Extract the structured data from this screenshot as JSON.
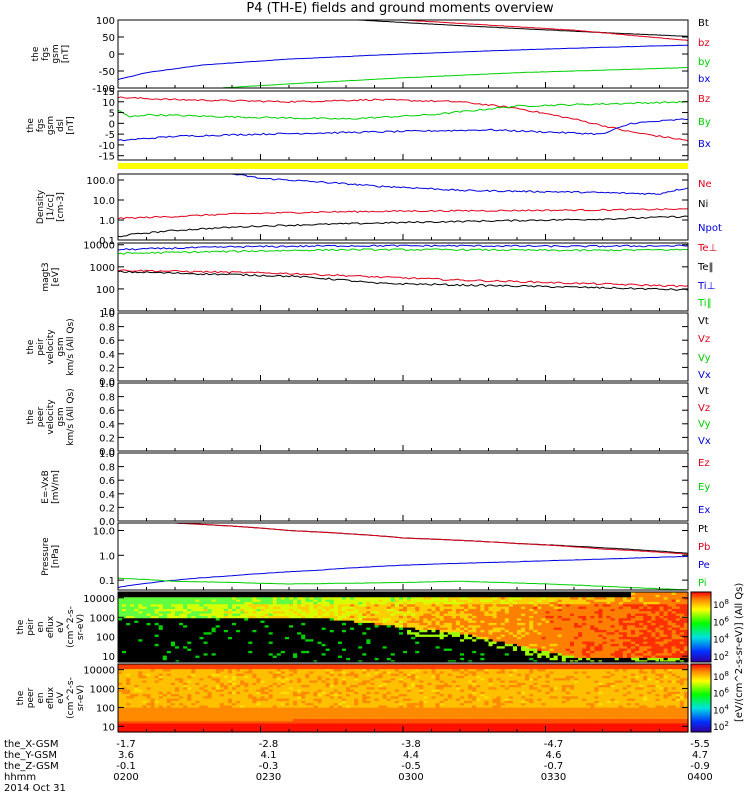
{
  "title": "P4 (TH-E) fields and ground moments overview",
  "colors": {
    "black": "#000000",
    "red": "#e0001a",
    "green": "#00d000",
    "blue": "#0000e0",
    "yellow": "#ffff00"
  },
  "chart_data": [
    {
      "type": "line",
      "panel": "fgs_gsm",
      "ylabel": [
        "the",
        "fgs",
        "gsm",
        "[nT]"
      ],
      "ylim": [
        -100,
        100
      ],
      "yticks": [
        "100",
        "50",
        "0",
        "-50",
        "-100"
      ],
      "yscale": "linear",
      "legend_placement": "right",
      "series": [
        {
          "name": "Bt",
          "color": "black",
          "x": [
            0.42,
            0.55,
            0.7,
            0.85,
            1.0
          ],
          "y": [
            100,
            88,
            75,
            63,
            52
          ]
        },
        {
          "name": "bz",
          "color": "red",
          "x": [
            0.5,
            0.65,
            0.8,
            0.9,
            1.0
          ],
          "y": [
            100,
            85,
            70,
            55,
            40
          ]
        },
        {
          "name": "by",
          "color": "green",
          "x": [
            0.18,
            0.3,
            0.5,
            0.7,
            0.9,
            1.0
          ],
          "y": [
            -100,
            -88,
            -70,
            -55,
            -45,
            -40
          ]
        },
        {
          "name": "bx",
          "color": "blue",
          "x": [
            0,
            0.05,
            0.15,
            0.3,
            0.5,
            0.7,
            0.9,
            1.0
          ],
          "y": [
            -75,
            -55,
            -32,
            -15,
            0,
            12,
            22,
            26
          ]
        }
      ]
    },
    {
      "type": "line",
      "panel": "fgs_gsm_dsl",
      "ylabel": [
        "the",
        "fgs",
        "gsm",
        "dsl",
        "[nT]"
      ],
      "ylim": [
        -17,
        15
      ],
      "yticks": [
        "15",
        "10",
        "5",
        "0",
        "-5",
        "-10",
        "-15"
      ],
      "yscale": "linear",
      "legend_placement": "right",
      "series": [
        {
          "name": "Bz",
          "color": "red",
          "x": [
            0,
            0.1,
            0.3,
            0.45,
            0.6,
            0.7,
            0.8,
            0.9,
            1.0
          ],
          "y": [
            12,
            11,
            10,
            11,
            10,
            7,
            2,
            -4,
            -8
          ]
        },
        {
          "name": "By",
          "color": "green",
          "x": [
            0,
            0.02,
            0.05,
            0.2,
            0.4,
            0.55,
            0.7,
            0.85,
            1.0
          ],
          "y": [
            6,
            3,
            4,
            3,
            2,
            4,
            8,
            9,
            10
          ]
        },
        {
          "name": "Bx",
          "color": "blue",
          "x": [
            0,
            0.1,
            0.25,
            0.45,
            0.65,
            0.75,
            0.85,
            0.9,
            1.0
          ],
          "y": [
            -8,
            -6,
            -5,
            -4,
            -3,
            -4,
            -5,
            0,
            2
          ]
        }
      ]
    },
    {
      "type": "line",
      "panel": "density",
      "ylabel": [
        "Density",
        "[1/cc]",
        "[cm-3]"
      ],
      "ylim": [
        0.1,
        200
      ],
      "yticks": [
        "100.0",
        "10.0",
        "1.0",
        "0.1"
      ],
      "yscale": "log",
      "legend_placement": "right",
      "series": [
        {
          "name": "Ne",
          "color": "red",
          "x": [
            0,
            0.1,
            0.2,
            0.35,
            0.5,
            0.7,
            0.85,
            1.0
          ],
          "y": [
            1.2,
            1.5,
            2,
            2.5,
            2.8,
            3,
            3.2,
            3.5
          ]
        },
        {
          "name": "Ni",
          "color": "black",
          "x": [
            0,
            0.1,
            0.25,
            0.45,
            0.65,
            0.85,
            1.0
          ],
          "y": [
            0.15,
            0.3,
            0.5,
            0.7,
            0.9,
            1.1,
            1.5
          ]
        },
        {
          "name": "Npot",
          "color": "blue",
          "x": [
            0.2,
            0.25,
            0.35,
            0.45,
            0.6,
            0.8,
            0.95,
            1.0
          ],
          "y": [
            200,
            120,
            80,
            50,
            30,
            25,
            20,
            40
          ]
        }
      ]
    },
    {
      "type": "line",
      "panel": "magt3",
      "ylabel": [
        "magt3",
        "[eV]"
      ],
      "ylim": [
        10,
        12000
      ],
      "yticks": [
        "10000",
        "1000",
        "100",
        "10"
      ],
      "yscale": "log",
      "legend_placement": "right",
      "series": [
        {
          "name": "Te⊥",
          "color": "red",
          "x": [
            0,
            0.15,
            0.3,
            0.45,
            0.6,
            0.8,
            1.0
          ],
          "y": [
            700,
            600,
            500,
            350,
            250,
            180,
            130
          ]
        },
        {
          "name": "Te‖",
          "color": "black",
          "x": [
            0,
            0.15,
            0.3,
            0.45,
            0.6,
            0.8,
            1.0
          ],
          "y": [
            600,
            480,
            380,
            180,
            150,
            120,
            90
          ]
        },
        {
          "name": "Ti⊥",
          "color": "blue",
          "x": [
            0,
            0.2,
            0.4,
            0.6,
            0.8,
            1.0
          ],
          "y": [
            6000,
            8000,
            9000,
            9000,
            8500,
            9000
          ]
        },
        {
          "name": "Ti‖",
          "color": "green",
          "x": [
            0,
            0.2,
            0.4,
            0.6,
            0.8,
            1.0
          ],
          "y": [
            4000,
            5000,
            6000,
            6000,
            5500,
            6000
          ]
        }
      ]
    },
    {
      "type": "line",
      "panel": "peir_velocity",
      "ylabel": [
        "the",
        "peir",
        "velocity",
        "gsm",
        "km/s (All Qs)"
      ],
      "ylim": [
        0,
        1
      ],
      "yticks": [
        "1.0",
        "0.8",
        "0.6",
        "0.4",
        "0.2",
        "0.0"
      ],
      "yscale": "linear",
      "legend_placement": "right",
      "series": [
        {
          "name": "Vt",
          "color": "black",
          "x": [],
          "y": []
        },
        {
          "name": "Vz",
          "color": "red",
          "x": [],
          "y": []
        },
        {
          "name": "Vy",
          "color": "green",
          "x": [],
          "y": []
        },
        {
          "name": "Vx",
          "color": "blue",
          "x": [],
          "y": []
        }
      ]
    },
    {
      "type": "line",
      "panel": "peer_velocity",
      "ylabel": [
        "the",
        "peer",
        "velocity",
        "gsm",
        "km/s (All Qs)"
      ],
      "ylim": [
        0,
        1
      ],
      "yticks": [
        "1.0",
        "0.8",
        "0.6",
        "0.4",
        "0.2",
        "0.0"
      ],
      "yscale": "linear",
      "legend_placement": "right",
      "series": [
        {
          "name": "Vt",
          "color": "black",
          "x": [],
          "y": []
        },
        {
          "name": "Vz",
          "color": "red",
          "x": [],
          "y": []
        },
        {
          "name": "Vy",
          "color": "green",
          "x": [],
          "y": []
        },
        {
          "name": "Vx",
          "color": "blue",
          "x": [],
          "y": []
        }
      ]
    },
    {
      "type": "line",
      "panel": "e_vxb",
      "ylabel": [
        "E=-VxB",
        "[mV/m]"
      ],
      "ylim": [
        0,
        1
      ],
      "yticks": [
        "1.0",
        "0.8",
        "0.6",
        "0.4",
        "0.2",
        "0.0"
      ],
      "yscale": "linear",
      "legend_placement": "right",
      "series": [
        {
          "name": "Ez",
          "color": "red",
          "x": [],
          "y": []
        },
        {
          "name": "Ey",
          "color": "green",
          "x": [],
          "y": []
        },
        {
          "name": "Ex",
          "color": "blue",
          "x": [],
          "y": []
        }
      ]
    },
    {
      "type": "line",
      "panel": "pressure",
      "ylabel": [
        "Pressure",
        "[nPa]"
      ],
      "ylim": [
        0.04,
        20
      ],
      "yticks": [
        "10.0",
        "1.0",
        "0.1"
      ],
      "yscale": "log",
      "legend_placement": "right",
      "series": [
        {
          "name": "Pt",
          "color": "black",
          "x": [
            0.1,
            0.3,
            0.5,
            0.7,
            0.85,
            1.0
          ],
          "y": [
            20,
            10,
            5,
            3,
            2,
            1.2
          ]
        },
        {
          "name": "Pb",
          "color": "red",
          "x": [
            0.1,
            0.3,
            0.5,
            0.7,
            0.85,
            1.0
          ],
          "y": [
            20,
            10,
            5,
            3,
            1.8,
            1.1
          ]
        },
        {
          "name": "Pe",
          "color": "blue",
          "x": [
            0,
            0.1,
            0.2,
            0.35,
            0.5,
            0.7,
            0.85,
            1.0
          ],
          "y": [
            0.05,
            0.1,
            0.15,
            0.25,
            0.4,
            0.55,
            0.7,
            0.9
          ]
        },
        {
          "name": "Pi",
          "color": "green",
          "x": [
            0,
            0.1,
            0.3,
            0.5,
            0.6,
            0.75,
            0.9,
            1.0
          ],
          "y": [
            0.12,
            0.09,
            0.07,
            0.08,
            0.09,
            0.07,
            0.05,
            0.04
          ]
        }
      ]
    },
    {
      "type": "heatmap",
      "panel": "peir_en_eflux",
      "ylabel": [
        "the",
        "peir",
        "en",
        "eflux",
        "eV",
        "(cm^2-s-",
        "sr-eV)"
      ],
      "ylim": [
        5,
        20000
      ],
      "yticks": [
        "10000",
        "1000",
        "100",
        "10"
      ],
      "yscale": "log",
      "colorbar_label": "[eV/(cm^2-s-sr-eV)] (All Qs)",
      "colorbar_ticks": [
        "10^8",
        "10^6",
        "10^4",
        "10^2"
      ]
    },
    {
      "type": "heatmap",
      "panel": "peer_en_eflux",
      "ylabel": [
        "the",
        "peer",
        "en",
        "eflux",
        "eV",
        "(cm^2-s-",
        "sr-eV)"
      ],
      "ylim": [
        5,
        20000
      ],
      "yticks": [
        "10000",
        "1000",
        "100",
        "10"
      ],
      "yscale": "log",
      "colorbar_label": "[eV/(cm^2-s-sr-eV)] (All Qs)",
      "colorbar_ticks": [
        "10^8",
        "10^6",
        "10^4",
        "10^2"
      ]
    }
  ],
  "x_axis": {
    "rows": [
      {
        "label": "the_X-GSM",
        "values": [
          "-1.7",
          "-2.8",
          "-3.8",
          "-4.7",
          "-5.5"
        ]
      },
      {
        "label": "the_Y-GSM",
        "values": [
          "3.6",
          "4.1",
          "4.4",
          "4.6",
          "4.7"
        ]
      },
      {
        "label": "the_Z-GSM",
        "values": [
          "-0.1",
          "-0.3",
          "-0.5",
          "-0.7",
          "-0.9"
        ]
      },
      {
        "label": "hhmm",
        "values": [
          "0200",
          "0230",
          "0300",
          "0330",
          "0400"
        ]
      }
    ],
    "date": "2014 Oct 31"
  }
}
